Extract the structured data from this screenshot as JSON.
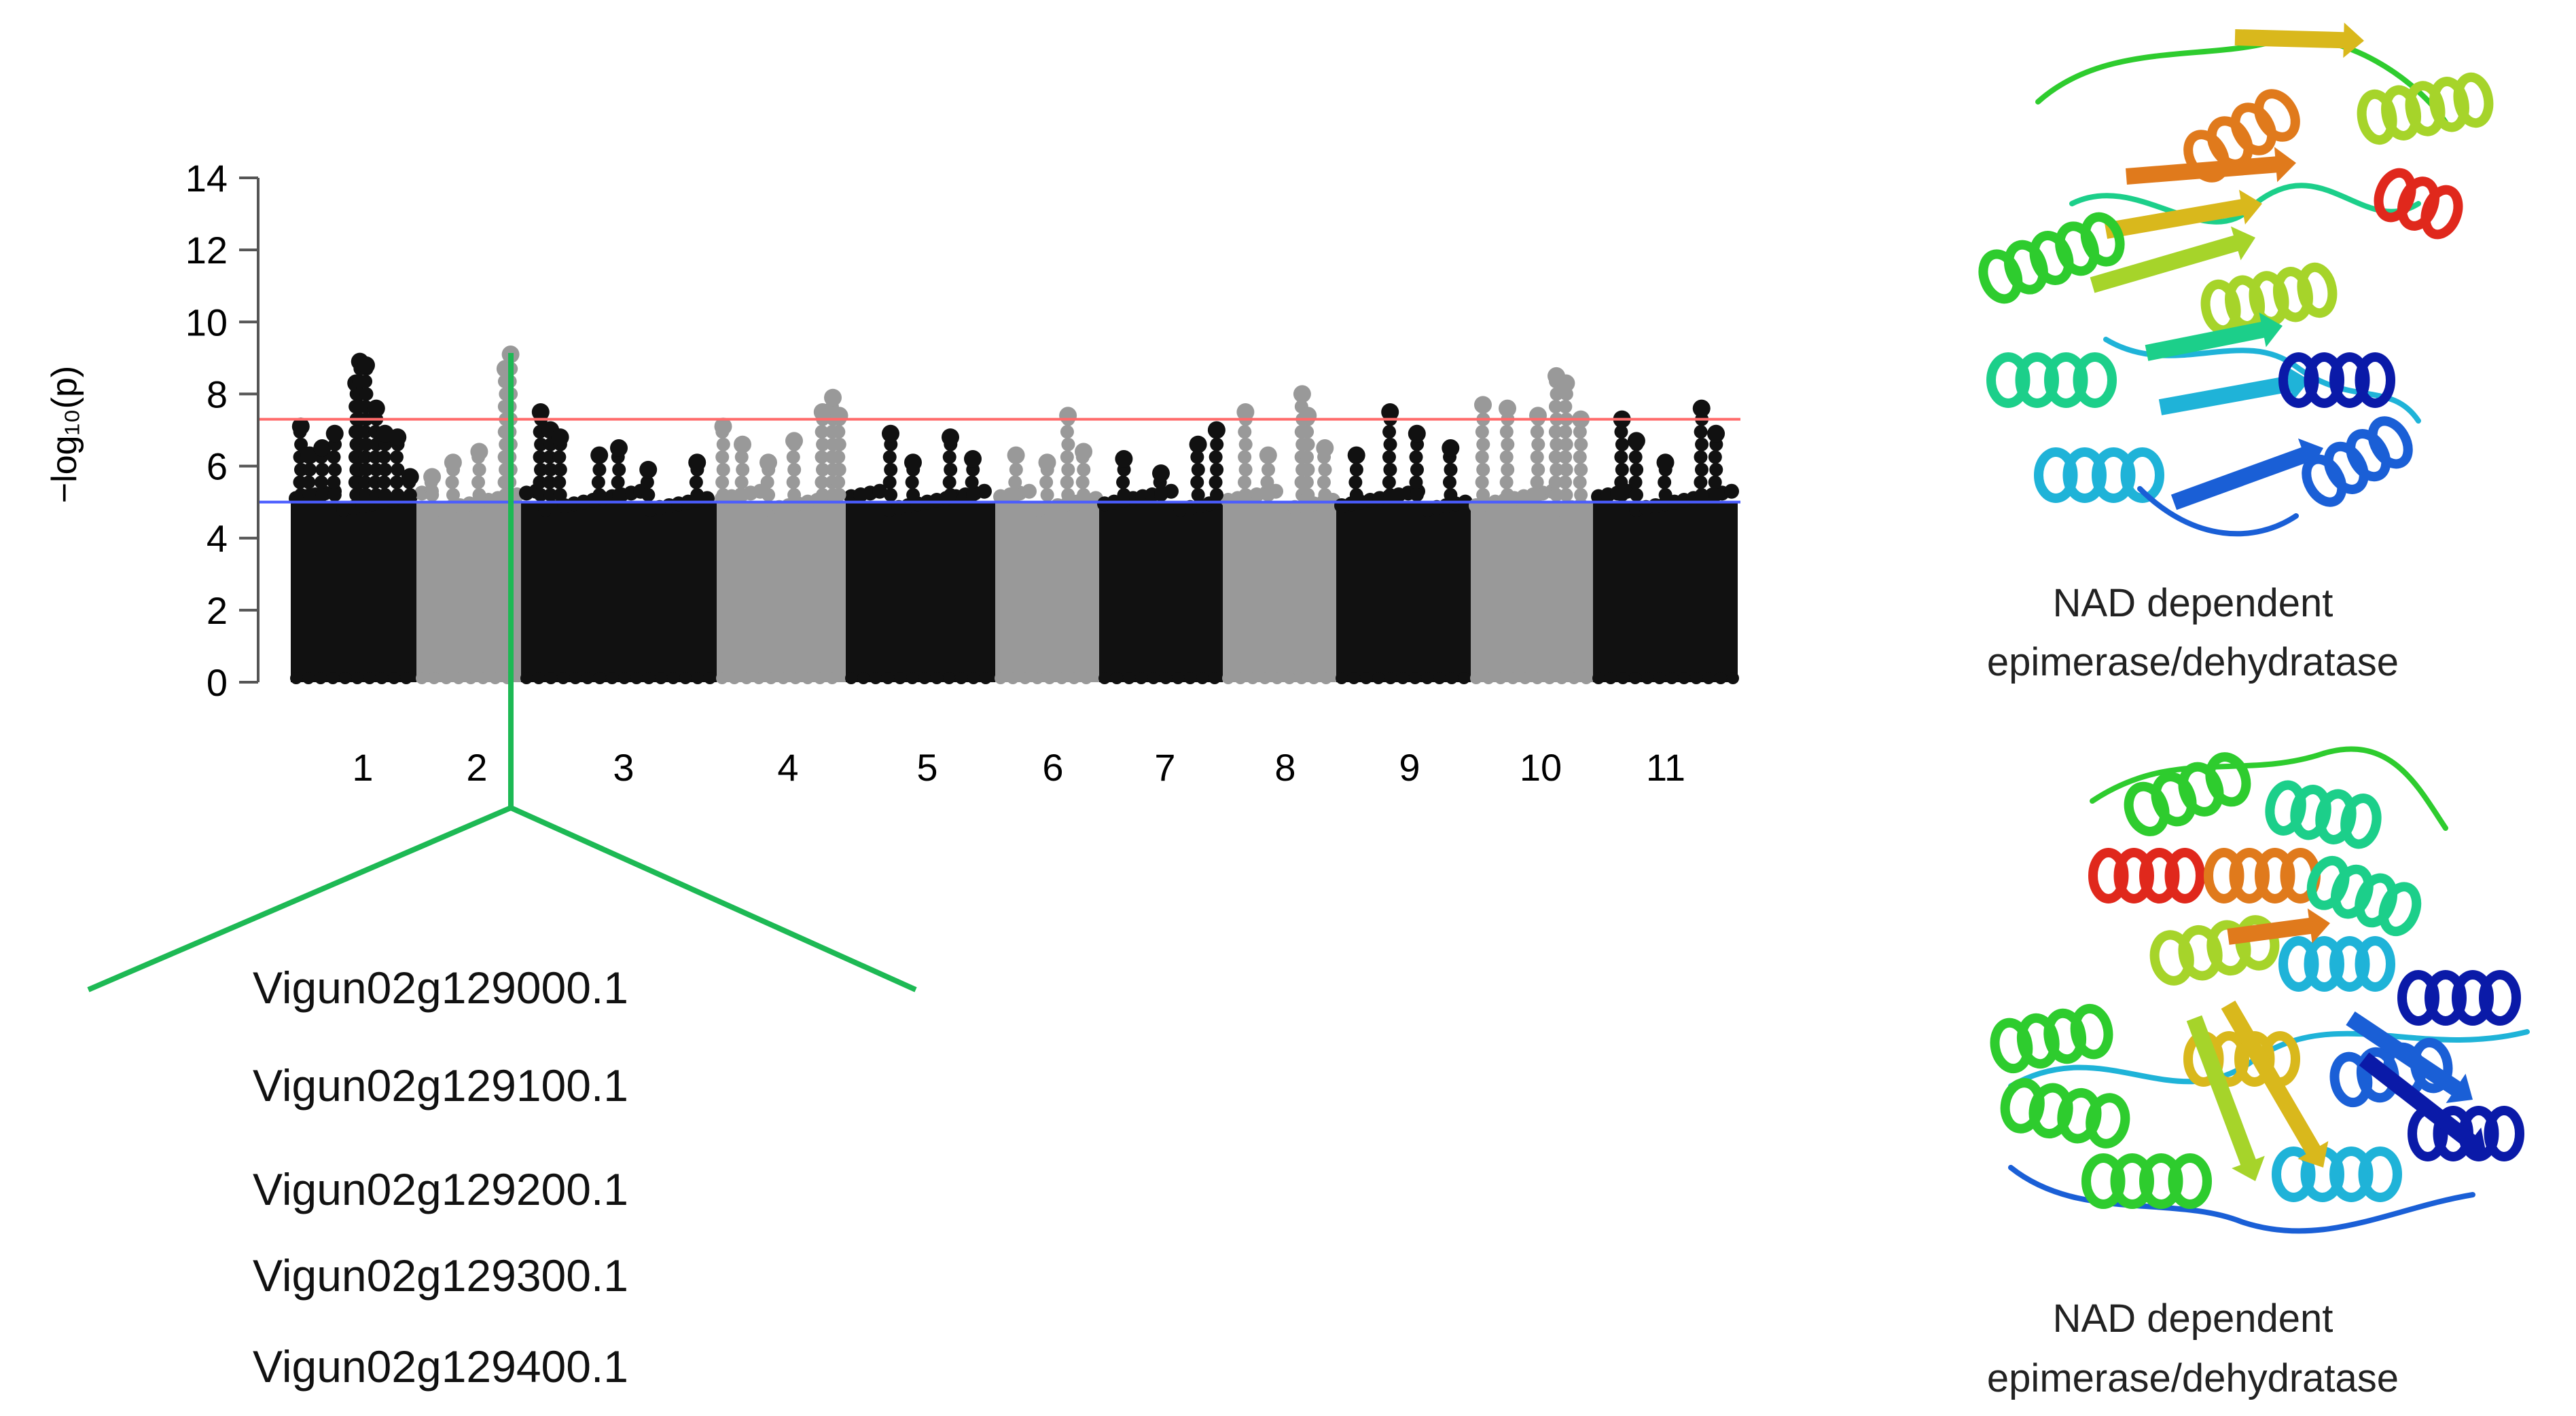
{
  "chart_data": {
    "type": "scatter",
    "ylabel": "−log₁₀(p)",
    "ylim": [
      0,
      14
    ],
    "yticks": [
      0,
      2,
      4,
      6,
      8,
      10,
      12,
      14
    ],
    "grid": false,
    "categories": [
      "1",
      "2",
      "3",
      "4",
      "5",
      "6",
      "7",
      "8",
      "9",
      "10",
      "11"
    ],
    "chromosome_colors": [
      "#111111",
      "#999999",
      "#111111",
      "#999999",
      "#111111",
      "#999999",
      "#111111",
      "#999999",
      "#111111",
      "#999999",
      "#111111"
    ],
    "thresholds": [
      {
        "value": 7.3,
        "color": "#ff6b6b"
      },
      {
        "value": 5.0,
        "color": "#4a5cff"
      }
    ],
    "series": [
      {
        "chromosome": "1",
        "top_points": [
          [
            0.08,
            7.1
          ],
          [
            0.15,
            6.3
          ],
          [
            0.25,
            6.5
          ],
          [
            0.35,
            6.9
          ],
          [
            0.52,
            8.3
          ],
          [
            0.55,
            8.9
          ],
          [
            0.6,
            8.8
          ],
          [
            0.68,
            7.6
          ],
          [
            0.75,
            6.9
          ],
          [
            0.85,
            6.8
          ],
          [
            0.95,
            5.7
          ]
        ]
      },
      {
        "chromosome": "2",
        "top_points": [
          [
            0.15,
            5.7
          ],
          [
            0.35,
            6.1
          ],
          [
            0.6,
            6.4
          ],
          [
            0.85,
            8.7
          ],
          [
            0.9,
            9.1
          ]
        ]
      },
      {
        "chromosome": "3",
        "top_points": [
          [
            0.1,
            7.5
          ],
          [
            0.15,
            7.0
          ],
          [
            0.2,
            6.8
          ],
          [
            0.4,
            6.3
          ],
          [
            0.5,
            6.5
          ],
          [
            0.65,
            5.9
          ],
          [
            0.9,
            6.1
          ]
        ]
      },
      {
        "chromosome": "4",
        "top_points": [
          [
            0.05,
            7.1
          ],
          [
            0.2,
            6.6
          ],
          [
            0.4,
            6.1
          ],
          [
            0.6,
            6.7
          ],
          [
            0.82,
            7.5
          ],
          [
            0.9,
            7.9
          ],
          [
            0.95,
            7.4
          ]
        ]
      },
      {
        "chromosome": "5",
        "top_points": [
          [
            0.3,
            6.9
          ],
          [
            0.45,
            6.1
          ],
          [
            0.7,
            6.8
          ],
          [
            0.85,
            6.2
          ]
        ]
      },
      {
        "chromosome": "6",
        "top_points": [
          [
            0.2,
            6.3
          ],
          [
            0.5,
            6.1
          ],
          [
            0.7,
            7.4
          ],
          [
            0.85,
            6.4
          ]
        ]
      },
      {
        "chromosome": "7",
        "top_points": [
          [
            0.2,
            6.2
          ],
          [
            0.5,
            5.8
          ],
          [
            0.8,
            6.6
          ],
          [
            0.95,
            7.0
          ]
        ]
      },
      {
        "chromosome": "8",
        "top_points": [
          [
            0.2,
            7.5
          ],
          [
            0.4,
            6.3
          ],
          [
            0.7,
            8.0
          ],
          [
            0.75,
            7.4
          ],
          [
            0.9,
            6.5
          ]
        ]
      },
      {
        "chromosome": "9",
        "top_points": [
          [
            0.15,
            6.3
          ],
          [
            0.4,
            7.5
          ],
          [
            0.6,
            6.9
          ],
          [
            0.85,
            6.5
          ]
        ]
      },
      {
        "chromosome": "10",
        "top_points": [
          [
            0.1,
            7.7
          ],
          [
            0.3,
            7.6
          ],
          [
            0.55,
            7.4
          ],
          [
            0.7,
            8.5
          ],
          [
            0.78,
            8.3
          ],
          [
            0.9,
            7.3
          ]
        ]
      },
      {
        "chromosome": "11",
        "top_points": [
          [
            0.2,
            7.3
          ],
          [
            0.3,
            6.7
          ],
          [
            0.5,
            6.1
          ],
          [
            0.75,
            7.6
          ],
          [
            0.85,
            6.9
          ]
        ]
      }
    ]
  },
  "genes": [
    "Vigun02g129000.1",
    "Vigun02g129100.1",
    "Vigun02g129200.1",
    "Vigun02g129300.1",
    "Vigun02g129400.1"
  ],
  "proteins": [
    {
      "caption_line1": "NAD dependent",
      "caption_line2": "epimerase/dehydratase",
      "icon": "protein-ribbon-structure"
    },
    {
      "caption_line1": "NAD dependent",
      "caption_line2": "epimerase/dehydratase",
      "icon": "protein-ribbon-structure"
    }
  ],
  "colors": {
    "zoom_lines": "#1db954",
    "rainbow": [
      "#0a1aa8",
      "#1a5fd6",
      "#1fb3d8",
      "#1ccf8a",
      "#2ecc2e",
      "#a6d42a",
      "#d9b81c",
      "#e07a1c",
      "#e0281c"
    ]
  }
}
